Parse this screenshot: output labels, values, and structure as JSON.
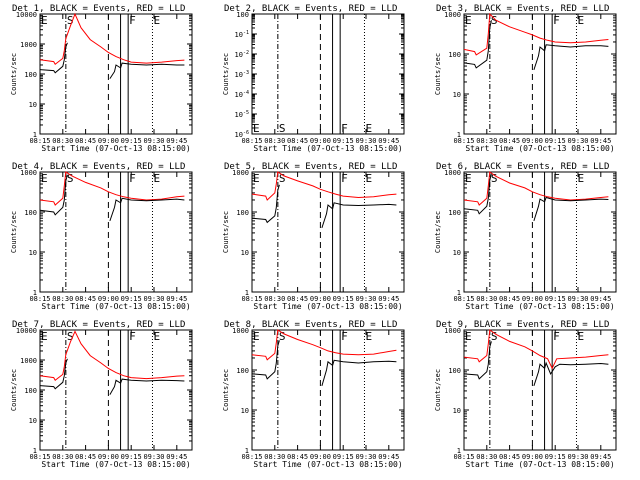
{
  "chart_data": {
    "type": "line",
    "grid": "3x3",
    "xlabel": "Start Time (07-Oct-13 08:15:00)",
    "ylabel": "Counts/sec",
    "x_ticks": [
      "08:15",
      "08:30",
      "08:45",
      "09:00",
      "09:15",
      "09:30",
      "09:45"
    ],
    "x_range": [
      "08:15",
      "09:55"
    ],
    "y_scale": "log",
    "series_colors": {
      "events": "#000000",
      "lld": "#ff0000"
    },
    "vertical_markers": [
      {
        "label": "E",
        "time": "08:15",
        "style": "dotted"
      },
      {
        "label": "S",
        "time": "08:32",
        "style": "dash-dot"
      },
      {
        "label": "",
        "time": "09:00",
        "style": "dashed"
      },
      {
        "label": "",
        "time": "09:08",
        "style": "solid"
      },
      {
        "label": "F",
        "time": "09:13",
        "style": "solid"
      },
      {
        "label": "E",
        "time": "09:29",
        "style": "dotted"
      }
    ],
    "panels": [
      {
        "title": "Det 1, BLACK = Events, RED = LLD",
        "ylim": [
          1,
          10000
        ],
        "y_ticks": [
          "1",
          "10",
          "100",
          "1000",
          "10000"
        ],
        "events": {
          "t": [
            "08:15",
            "08:24",
            "08:25",
            "08:30",
            "08:31",
            "08:32",
            "08:33"
          ],
          "v": [
            140,
            130,
            110,
            180,
            300,
            800,
            1100
          ],
          "t2": [
            "09:01",
            "09:04",
            "09:05",
            "09:08",
            "09:09",
            "09:15",
            "09:25",
            "09:35",
            "09:45",
            "09:50"
          ],
          "v2": [
            70,
            120,
            200,
            160,
            230,
            210,
            200,
            210,
            200,
            200
          ]
        },
        "lld": {
          "t": [
            "08:15",
            "08:24",
            "08:25",
            "08:30",
            "08:31",
            "08:32",
            "08:35",
            "08:38",
            "08:42",
            "08:48",
            "08:55",
            "09:00",
            "09:05",
            "09:10",
            "09:15",
            "09:25",
            "09:35",
            "09:45",
            "09:50"
          ],
          "v": [
            300,
            260,
            210,
            330,
            600,
            1500,
            4000,
            10000,
            3500,
            1400,
            800,
            520,
            380,
            300,
            250,
            230,
            250,
            280,
            290
          ]
        }
      },
      {
        "title": "Det 2, BLACK = Events, RED = LLD",
        "ylim": [
          1e-06,
          1
        ],
        "y_ticks": [
          "10-6",
          "10-5",
          "10-4",
          "10-3",
          "10-2",
          "10-1",
          "100"
        ],
        "events": null,
        "lld": null
      },
      {
        "title": "Det 3, BLACK = Events, RED = LLD",
        "ylim": [
          1,
          1000
        ],
        "y_ticks": [
          "1",
          "10",
          "100",
          "1000"
        ],
        "events": {
          "t": [
            "08:15",
            "08:22",
            "08:23",
            "08:30",
            "08:31",
            "08:32",
            "08:33"
          ],
          "v": [
            60,
            55,
            45,
            70,
            120,
            450,
            700
          ],
          "t2": [
            "09:01",
            "09:04",
            "09:05",
            "09:08",
            "09:09",
            "09:15",
            "09:25",
            "09:35",
            "09:45",
            "09:50"
          ],
          "v2": [
            40,
            90,
            150,
            120,
            170,
            160,
            150,
            160,
            160,
            155
          ]
        },
        "lld": {
          "t": [
            "08:15",
            "08:22",
            "08:23",
            "08:30",
            "08:31",
            "08:32",
            "08:36",
            "08:45",
            "08:55",
            "09:00",
            "09:05",
            "09:10",
            "09:15",
            "09:25",
            "09:35",
            "09:45",
            "09:50"
          ],
          "v": [
            130,
            115,
            95,
            140,
            320,
            1000,
            700,
            480,
            350,
            300,
            250,
            220,
            200,
            190,
            200,
            220,
            230
          ]
        }
      },
      {
        "title": "Det 4, BLACK = Events, RED = LLD",
        "ylim": [
          1,
          1000
        ],
        "y_ticks": [
          "1",
          "10",
          "100",
          "1000"
        ],
        "events": {
          "t": [
            "08:15",
            "08:24",
            "08:25",
            "08:30",
            "08:31",
            "08:32",
            "08:33"
          ],
          "v": [
            110,
            100,
            85,
            130,
            200,
            600,
            850
          ],
          "t2": [
            "09:01",
            "09:04",
            "09:05",
            "09:08",
            "09:09",
            "09:15",
            "09:25",
            "09:35",
            "09:45",
            "09:50"
          ],
          "v2": [
            60,
            130,
            200,
            170,
            220,
            200,
            190,
            200,
            210,
            200
          ]
        },
        "lld": {
          "t": [
            "08:15",
            "08:24",
            "08:25",
            "08:30",
            "08:31",
            "08:32",
            "08:36",
            "08:45",
            "08:55",
            "09:00",
            "09:05",
            "09:10",
            "09:15",
            "09:25",
            "09:35",
            "09:45",
            "09:50"
          ],
          "v": [
            200,
            180,
            150,
            220,
            450,
            1000,
            800,
            550,
            400,
            320,
            270,
            240,
            220,
            200,
            210,
            240,
            250
          ]
        }
      },
      {
        "title": "Det 5, BLACK = Events, RED = LLD",
        "ylim": [
          1,
          1000
        ],
        "y_ticks": [
          "1",
          "10",
          "100",
          "1000"
        ],
        "events": {
          "t": [
            "08:15",
            "08:24",
            "08:25",
            "08:30",
            "08:31",
            "08:32",
            "08:33"
          ],
          "v": [
            70,
            65,
            55,
            80,
            130,
            350,
            480
          ],
          "t2": [
            "09:01",
            "09:04",
            "09:05",
            "09:08",
            "09:09",
            "09:15",
            "09:25",
            "09:35",
            "09:45",
            "09:50"
          ],
          "v2": [
            40,
            90,
            150,
            120,
            170,
            150,
            145,
            150,
            155,
            150
          ]
        },
        "lld": {
          "t": [
            "08:15",
            "08:24",
            "08:25",
            "08:30",
            "08:31",
            "08:32",
            "08:36",
            "08:45",
            "08:55",
            "09:00",
            "09:05",
            "09:10",
            "09:15",
            "09:25",
            "09:35",
            "09:45",
            "09:50"
          ],
          "v": [
            280,
            250,
            200,
            300,
            500,
            1000,
            800,
            600,
            450,
            370,
            320,
            280,
            250,
            230,
            240,
            270,
            280
          ]
        }
      },
      {
        "title": "Det 6, BLACK = Events, RED = LLD",
        "ylim": [
          1,
          1000
        ],
        "y_ticks": [
          "1",
          "10",
          "100",
          "1000"
        ],
        "events": {
          "t": [
            "08:15",
            "08:24",
            "08:25",
            "08:30",
            "08:31",
            "08:32",
            "08:33"
          ],
          "v": [
            120,
            110,
            90,
            140,
            220,
            620,
            900
          ],
          "t2": [
            "09:01",
            "09:04",
            "09:05",
            "09:08",
            "09:09",
            "09:15",
            "09:25",
            "09:35",
            "09:45",
            "09:50"
          ],
          "v2": [
            60,
            140,
            210,
            180,
            230,
            200,
            190,
            200,
            210,
            205
          ]
        },
        "lld": {
          "t": [
            "08:15",
            "08:24",
            "08:25",
            "08:30",
            "08:31",
            "08:32",
            "08:36",
            "08:45",
            "08:55",
            "09:00",
            "09:05",
            "09:10",
            "09:15",
            "09:25",
            "09:35",
            "09:45",
            "09:50"
          ],
          "v": [
            200,
            180,
            150,
            220,
            450,
            1000,
            780,
            530,
            400,
            320,
            270,
            240,
            220,
            200,
            210,
            230,
            240
          ]
        }
      },
      {
        "title": "Det 7, BLACK = Events, RED = LLD",
        "ylim": [
          1,
          10000
        ],
        "y_ticks": [
          "1",
          "10",
          "100",
          "1000",
          "10000"
        ],
        "events": {
          "t": [
            "08:15",
            "08:24",
            "08:25",
            "08:30",
            "08:31",
            "08:32",
            "08:33"
          ],
          "v": [
            140,
            130,
            110,
            180,
            300,
            800,
            1100
          ],
          "t2": [
            "09:01",
            "09:04",
            "09:05",
            "09:08",
            "09:09",
            "09:15",
            "09:25",
            "09:35",
            "09:45",
            "09:50"
          ],
          "v2": [
            70,
            130,
            210,
            170,
            230,
            210,
            200,
            210,
            205,
            200
          ]
        },
        "lld": {
          "t": [
            "08:15",
            "08:24",
            "08:25",
            "08:30",
            "08:31",
            "08:32",
            "08:35",
            "08:38",
            "08:42",
            "08:48",
            "08:55",
            "09:00",
            "09:05",
            "09:10",
            "09:15",
            "09:25",
            "09:35",
            "09:45",
            "09:50"
          ],
          "v": [
            300,
            260,
            210,
            330,
            600,
            1500,
            4000,
            9000,
            3500,
            1400,
            800,
            520,
            380,
            300,
            260,
            240,
            260,
            290,
            300
          ]
        }
      },
      {
        "title": "Det 8, BLACK = Events, RED = LLD",
        "ylim": [
          1,
          1000
        ],
        "y_ticks": [
          "1",
          "10",
          "100",
          "1000"
        ],
        "events": {
          "t": [
            "08:15",
            "08:24",
            "08:25",
            "08:30",
            "08:31",
            "08:32",
            "08:33"
          ],
          "v": [
            80,
            75,
            60,
            90,
            150,
            400,
            550
          ],
          "t2": [
            "09:01",
            "09:04",
            "09:05",
            "09:08",
            "09:09",
            "09:15",
            "09:25",
            "09:35",
            "09:45",
            "09:50"
          ],
          "v2": [
            40,
            100,
            160,
            130,
            175,
            160,
            150,
            160,
            165,
            160
          ]
        },
        "lld": {
          "t": [
            "08:15",
            "08:24",
            "08:25",
            "08:30",
            "08:31",
            "08:32",
            "08:36",
            "08:45",
            "08:55",
            "09:00",
            "09:05",
            "09:10",
            "09:15",
            "09:25",
            "09:35",
            "09:45",
            "09:50"
          ],
          "v": [
            240,
            220,
            180,
            260,
            480,
            1000,
            800,
            580,
            430,
            360,
            300,
            270,
            250,
            240,
            250,
            290,
            310
          ]
        }
      },
      {
        "title": "Det 9, BLACK = Events, RED = LLD",
        "ylim": [
          1,
          1000
        ],
        "y_ticks": [
          "1",
          "10",
          "100",
          "1000"
        ],
        "events": {
          "t": [
            "08:15",
            "08:24",
            "08:25",
            "08:30",
            "08:31",
            "08:32",
            "08:33"
          ],
          "v": [
            80,
            75,
            60,
            90,
            140,
            380,
            520
          ],
          "t2": [
            "09:01",
            "09:04",
            "09:05",
            "09:08",
            "09:09",
            "09:12",
            "09:15",
            "09:18",
            "09:25",
            "09:35",
            "09:45",
            "09:50"
          ],
          "v2": [
            40,
            90,
            140,
            110,
            150,
            80,
            120,
            140,
            135,
            140,
            145,
            140
          ]
        },
        "lld": {
          "t": [
            "08:15",
            "08:24",
            "08:25",
            "08:30",
            "08:31",
            "08:32",
            "08:36",
            "08:45",
            "08:55",
            "09:00",
            "09:05",
            "09:10",
            "09:13",
            "09:16",
            "09:25",
            "09:35",
            "09:45",
            "09:50"
          ],
          "v": [
            210,
            190,
            160,
            230,
            450,
            1000,
            780,
            520,
            380,
            300,
            230,
            190,
            110,
            190,
            200,
            210,
            230,
            240
          ]
        }
      }
    ]
  }
}
